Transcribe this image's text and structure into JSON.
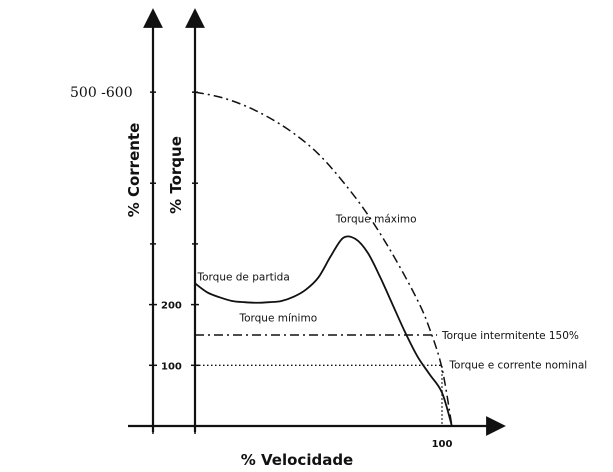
{
  "chart_data": {
    "type": "line",
    "title": "",
    "xlabel": "% Velocidade",
    "ylabel_current": "% Corrente",
    "ylabel_torque": "% Torque",
    "xlim": [
      0,
      115
    ],
    "ylim": [
      0,
      650
    ],
    "x_ticks": [
      {
        "value": 100,
        "label": "100"
      }
    ],
    "y_ticks": [
      {
        "value": 100,
        "label": "100"
      },
      {
        "value": 200,
        "label": "200"
      }
    ],
    "y_top_label": {
      "value": 550,
      "label": "500 -600"
    },
    "y_minor_ticks": [
      300,
      400,
      550
    ],
    "series": [
      {
        "style": "solid",
        "x": [
          0,
          5,
          10,
          15,
          20,
          25,
          30,
          35,
          40,
          45,
          50,
          55,
          60,
          65,
          70,
          75,
          80,
          85,
          90,
          95,
          100,
          104
        ],
        "y": [
          235,
          220,
          212,
          206,
          204,
          203,
          204,
          206,
          213,
          225,
          245,
          280,
          310,
          308,
          285,
          245,
          200,
          155,
          115,
          85,
          55,
          0
        ]
      },
      {
        "style": "dashdot",
        "x": [
          0,
          10,
          20,
          30,
          40,
          50,
          60,
          70,
          80,
          90,
          95,
          100,
          104
        ],
        "y": [
          550,
          542,
          528,
          508,
          482,
          448,
          402,
          348,
          283,
          208,
          160,
          95,
          0
        ]
      },
      {
        "style": "dashdot-horizontal",
        "x": [
          0,
          98
        ],
        "y": [
          150,
          150
        ]
      },
      {
        "style": "dotted",
        "x": [
          0,
          100,
          100
        ],
        "y": [
          100,
          100,
          0
        ]
      }
    ],
    "annotations": [
      {
        "label": "Torque máximo",
        "x": 57,
        "y": 335
      },
      {
        "label": "Torque de partida",
        "x": 1,
        "y": 240
      },
      {
        "label": "Torque mínimo",
        "x": 18,
        "y": 172
      },
      {
        "label": "Torque intermitente 150%",
        "x": 100,
        "y": 143
      },
      {
        "label": "Torque e corrente nominal",
        "x": 103,
        "y": 95
      }
    ],
    "grid": false,
    "legend": "none"
  }
}
